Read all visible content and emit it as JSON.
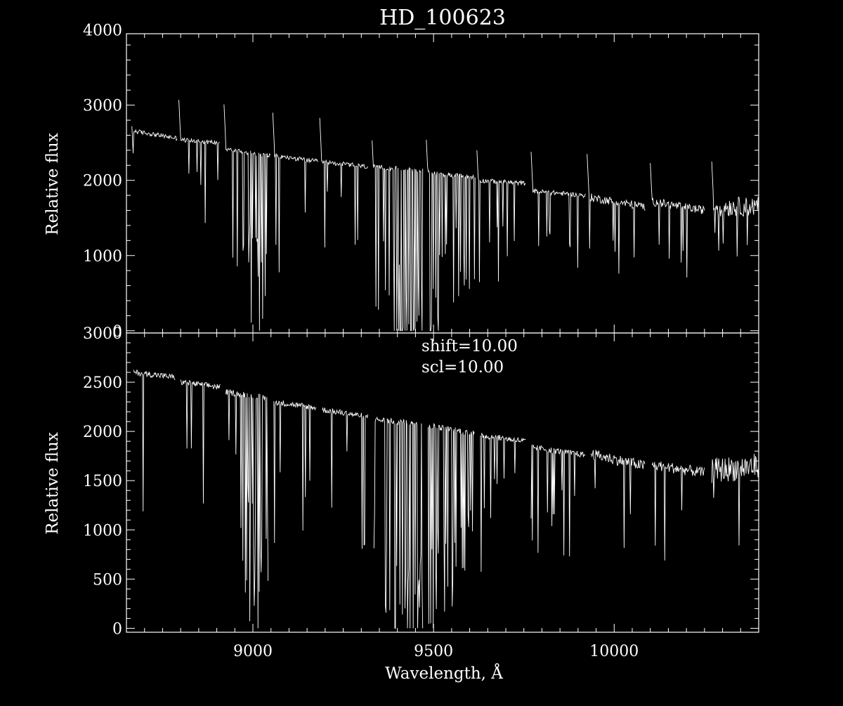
{
  "chart_data": [
    {
      "type": "line",
      "title": "HD_100623",
      "xlabel": "",
      "ylabel": "Relative flux",
      "xlim": [
        8650,
        10400
      ],
      "ylim": [
        -30,
        3950
      ],
      "xticks": [
        9000,
        9500,
        10000
      ],
      "xtick_labels": [],
      "yticks": [
        0,
        1000,
        2000,
        3000,
        4000
      ],
      "ytick_labels": [
        "0",
        "1000",
        "2000",
        "3000",
        "4000"
      ],
      "grid": false,
      "legend": "none",
      "annotations": [],
      "spectral_orders": [
        {
          "x": [
            8665,
            8790
          ],
          "level": [
            2660,
            2560
          ],
          "lines": 45,
          "edge_spike": 2720
        },
        {
          "x": [
            8795,
            8908
          ],
          "level": [
            2540,
            2500
          ],
          "lines": 30,
          "edge_spike": 3070
        },
        {
          "x": [
            8920,
            9048
          ],
          "level": [
            2420,
            2330
          ],
          "lines": 45,
          "edge_spike": 3010
        },
        {
          "x": [
            9055,
            9180
          ],
          "level": [
            2330,
            2250
          ],
          "lines": 45,
          "edge_spike": 2900
        },
        {
          "x": [
            9185,
            9318
          ],
          "level": [
            2250,
            2180
          ],
          "lines": 35,
          "edge_spike": 2830
        },
        {
          "x": [
            9330,
            9470
          ],
          "level": [
            2180,
            2130
          ],
          "lines": 90,
          "edge_spike": 2530
        },
        {
          "x": [
            9480,
            9615
          ],
          "level": [
            2100,
            2040
          ],
          "lines": 75,
          "edge_spike": 2540
        },
        {
          "x": [
            9620,
            9755
          ],
          "level": [
            2000,
            1960
          ],
          "lines": 40,
          "edge_spike": 2400
        },
        {
          "x": [
            9770,
            9920
          ],
          "level": [
            1860,
            1800
          ],
          "lines": 25,
          "edge_spike": 2380
        },
        {
          "x": [
            9925,
            10085
          ],
          "level": [
            1780,
            1650
          ],
          "lines": 20,
          "edge_spike": 2350
        },
        {
          "x": [
            10100,
            10250
          ],
          "level": [
            1720,
            1600
          ],
          "lines": 30,
          "edge_spike": 2230
        },
        {
          "x": [
            10270,
            10400
          ],
          "level": [
            1650,
            1650
          ],
          "lines": 40,
          "edge_spike": 2250
        }
      ]
    },
    {
      "type": "line",
      "title": "",
      "xlabel": "Wavelength, Å",
      "ylabel": "Relative flux",
      "xlim": [
        8650,
        10400
      ],
      "ylim": [
        -40,
        3000
      ],
      "xticks": [
        9000,
        9500,
        10000
      ],
      "xtick_labels": [
        "9000",
        "9500",
        "10000"
      ],
      "yticks": [
        0,
        500,
        1000,
        1500,
        2000,
        2500,
        3000
      ],
      "ytick_labels": [
        "0",
        "500",
        "1000",
        "1500",
        "2000",
        "2500",
        "3000"
      ],
      "grid": false,
      "legend": "none",
      "annotations": [
        "shift=10.00",
        "scl=10.00"
      ],
      "spectral_orders": [
        {
          "x": [
            8670,
            8785
          ],
          "level": [
            2600,
            2550
          ]
        },
        {
          "x": [
            8800,
            8910
          ],
          "level": [
            2500,
            2450
          ]
        },
        {
          "x": [
            8925,
            9042
          ],
          "level": [
            2400,
            2340
          ]
        },
        {
          "x": [
            9058,
            9175
          ],
          "level": [
            2300,
            2240
          ]
        },
        {
          "x": [
            9192,
            9318
          ],
          "level": [
            2220,
            2150
          ]
        },
        {
          "x": [
            9335,
            9470
          ],
          "level": [
            2120,
            2080
          ]
        },
        {
          "x": [
            9485,
            9613
          ],
          "level": [
            2060,
            1980
          ]
        },
        {
          "x": [
            9630,
            9755
          ],
          "level": [
            1960,
            1900
          ]
        },
        {
          "x": [
            9770,
            9920
          ],
          "level": [
            1840,
            1760
          ]
        },
        {
          "x": [
            9935,
            10085
          ],
          "level": [
            1770,
            1650
          ]
        },
        {
          "x": [
            10105,
            10250
          ],
          "level": [
            1660,
            1580
          ]
        },
        {
          "x": [
            10270,
            10400
          ],
          "level": [
            1600,
            1650
          ]
        }
      ]
    }
  ]
}
